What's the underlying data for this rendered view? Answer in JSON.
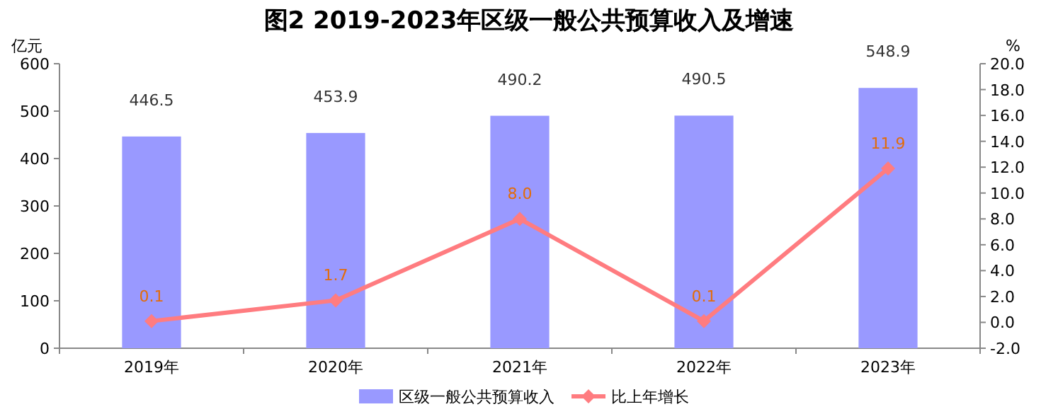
{
  "chart_data": {
    "type": "bar",
    "title": "图2  2019-2023年区级一般公共预算收入及增速",
    "ylabel": "亿元",
    "y2label": "%",
    "categories": [
      "2019年",
      "2020年",
      "2021年",
      "2022年",
      "2023年"
    ],
    "series": [
      {
        "name": "区级一般公共预算收入",
        "color": "#9999ff",
        "values": [
          446.5,
          453.9,
          490.2,
          490.5,
          548.9
        ]
      },
      {
        "name": "比上年增长",
        "type": "line",
        "axis": "y2",
        "color": "#ff7c80",
        "marker": "diamond",
        "values": [
          0.1,
          1.7,
          8.0,
          0.1,
          11.9
        ],
        "value_labels": [
          "0.1",
          "1.7",
          "8.0",
          "0.1",
          "11.9"
        ]
      }
    ],
    "ylim": [
      0,
      600
    ],
    "yticks": [
      0,
      100,
      200,
      300,
      400,
      500,
      600
    ],
    "y2lim": [
      -2,
      20
    ],
    "y2ticks": [
      {
        "value": -2,
        "label": "-2.0"
      },
      {
        "value": 0,
        "label": "0.0"
      },
      {
        "value": 2,
        "label": "2.0"
      },
      {
        "value": 4,
        "label": "4.0"
      },
      {
        "value": 6,
        "label": "6.0"
      },
      {
        "value": 8,
        "label": "8.0"
      },
      {
        "value": 10,
        "label": "10.0"
      },
      {
        "value": 12,
        "label": "12.0"
      },
      {
        "value": 14,
        "label": "14.0"
      },
      {
        "value": 16,
        "label": "16.0"
      },
      {
        "value": 18,
        "label": "18.0"
      },
      {
        "value": 20,
        "label": "20.0"
      }
    ],
    "data_labels": true,
    "legend": "bottom"
  }
}
